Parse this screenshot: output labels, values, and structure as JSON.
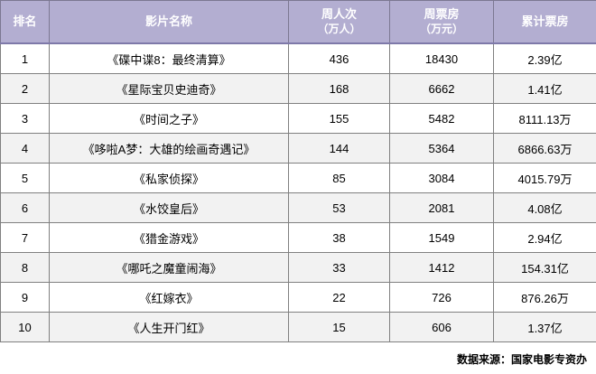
{
  "colors": {
    "page_bg": "#ffffff",
    "header_bg": "#b3aed1",
    "header_text": "#ffffff",
    "header_border": "#7c7892",
    "header_bottom_border": "#7e79a9",
    "grid_border": "#808080",
    "row_odd_bg": "#ffffff",
    "row_even_bg": "#f2f2f2",
    "body_text": "#000000",
    "footer_text": "#000000"
  },
  "chart_data": {
    "type": "table",
    "title": "",
    "columns": [
      {
        "label": "排名",
        "sublabel": ""
      },
      {
        "label": "影片名称",
        "sublabel": ""
      },
      {
        "label": "周人次",
        "sublabel": "（万人）"
      },
      {
        "label": "周票房",
        "sublabel": "（万元）"
      },
      {
        "label": "累计票房",
        "sublabel": ""
      }
    ],
    "rows": [
      [
        "1",
        "《碟中谍8：最终清算》",
        "436",
        "18430",
        "2.39亿"
      ],
      [
        "2",
        "《星际宝贝史迪奇》",
        "168",
        "6662",
        "1.41亿"
      ],
      [
        "3",
        "《时间之子》",
        "155",
        "5482",
        "8111.13万"
      ],
      [
        "4",
        "《哆啦A梦：大雄的绘画奇遇记》",
        "144",
        "5364",
        "6866.63万"
      ],
      [
        "5",
        "《私家侦探》",
        "85",
        "3084",
        "4015.79万"
      ],
      [
        "6",
        "《水饺皇后》",
        "53",
        "2081",
        "4.08亿"
      ],
      [
        "7",
        "《猎金游戏》",
        "38",
        "1549",
        "2.94亿"
      ],
      [
        "8",
        "《哪吒之魔童闹海》",
        "33",
        "1412",
        "154.31亿"
      ],
      [
        "9",
        "《红嫁衣》",
        "22",
        "726",
        "876.26万"
      ],
      [
        "10",
        "《人生开门红》",
        "15",
        "606",
        "1.37亿"
      ]
    ],
    "source": "数据来源：国家电影专资办"
  }
}
